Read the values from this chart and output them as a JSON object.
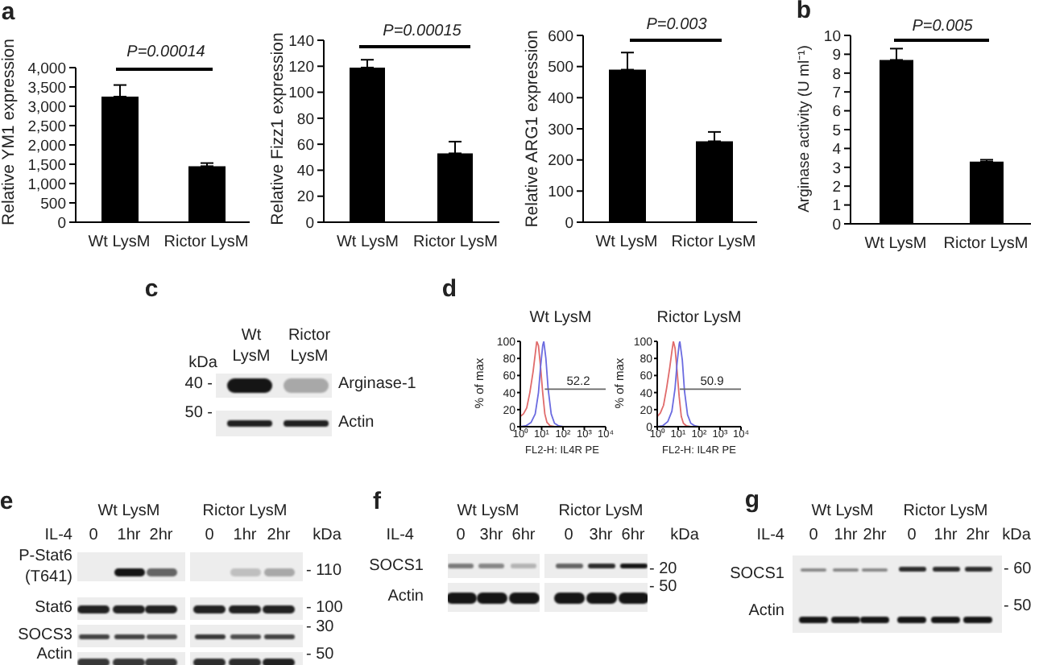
{
  "chart_data": [
    {
      "type": "bar",
      "ylabel": "Relative YM1 expression",
      "categories": [
        "Wt LysM",
        "Rictor LysM"
      ],
      "values": [
        3250,
        1450
      ],
      "errors": [
        [
          3250,
          3550
        ],
        [
          1450,
          1530
        ]
      ],
      "color": "#000000",
      "ylim": [
        0,
        4000
      ],
      "yticks": [
        0,
        500,
        {
          "value": 1000,
          "label": "1,000"
        },
        {
          "value": 1500,
          "label": "1,500"
        },
        {
          "value": 2000,
          "label": "2,000"
        },
        {
          "value": 2500,
          "label": "2,500"
        },
        {
          "value": 3000,
          "label": "3,000"
        },
        {
          "value": 3500,
          "label": "3,500"
        },
        {
          "value": 4000,
          "label": "4,000"
        }
      ],
      "annotations": [
        "a",
        "P=0.00014"
      ]
    },
    {
      "type": "bar",
      "ylabel": "Relative Fizz1 expression",
      "categories": [
        "Wt LysM",
        "Rictor LysM"
      ],
      "values": [
        119,
        53
      ],
      "errors": [
        [
          119,
          125
        ],
        [
          53,
          62
        ]
      ],
      "color": "#000000",
      "ylim": [
        0,
        140
      ],
      "yticks": [
        0,
        20,
        40,
        60,
        80,
        100,
        120,
        140
      ],
      "annotations": [
        "P=0.00015"
      ]
    },
    {
      "type": "bar",
      "ylabel": "Relative ARG1 expression",
      "categories": [
        "Wt LysM",
        "Rictor LysM"
      ],
      "values": [
        490,
        260
      ],
      "errors": [
        [
          490,
          545
        ],
        [
          260,
          290
        ]
      ],
      "color": "#000000",
      "ylim": [
        0,
        600
      ],
      "yticks": [
        0,
        100,
        200,
        300,
        400,
        500,
        600
      ],
      "annotations": [
        "P=0.003"
      ]
    },
    {
      "type": "bar",
      "ylabel": "Arginase activity (U ml⁻¹)",
      "categories": [
        "Wt LysM",
        "Rictor LysM"
      ],
      "values": [
        8.7,
        3.3
      ],
      "errors": [
        [
          8.7,
          9.3
        ],
        [
          3.3,
          3.4
        ]
      ],
      "color": "#000000",
      "ylim": [
        0,
        10
      ],
      "yticks": [
        0,
        1,
        2,
        3,
        4,
        5,
        6,
        7,
        8,
        9,
        10
      ],
      "annotations": [
        "b",
        "P=0.005"
      ]
    },
    {
      "type": "other",
      "annotations": [
        "c",
        "Wt LysM",
        "Rictor LysM",
        "kDa",
        "40 -",
        "50 -",
        "Arginase-1",
        "Actin"
      ]
    },
    {
      "type": "line",
      "title": "Wt LysM",
      "xlabel": "FL2-H: IL4R PE",
      "ylabel": "% of max",
      "log": "x",
      "xlim": [
        1,
        10000
      ],
      "xticks": [
        {
          "value": 1,
          "label": "10⁰"
        },
        {
          "value": 10,
          "label": "10¹"
        },
        {
          "value": 100,
          "label": "10²"
        },
        {
          "value": 1000,
          "label": "10³"
        },
        {
          "value": 10000,
          "label": "10⁴"
        }
      ],
      "ylim": [
        0,
        100
      ],
      "yticks": [
        0,
        20,
        40,
        60,
        80,
        100
      ],
      "series": [
        {
          "color": "#e06b6b",
          "x": [
            1,
            1.4,
            2,
            2.8,
            4,
            5,
            5.9,
            7.1,
            8.9,
            11.2,
            14.1,
            17.8,
            25,
            40
          ],
          "values": [
            12,
            15,
            22,
            40,
            65,
            85,
            100,
            95,
            70,
            40,
            15,
            5,
            1,
            0
          ]
        },
        {
          "color": "#6b6be0",
          "x": [
            1,
            1.8,
            3.2,
            5,
            7.1,
            8.9,
            11.2,
            12.6,
            15.8,
            20,
            28,
            40,
            63,
            100
          ],
          "values": [
            0,
            1,
            5,
            15,
            40,
            70,
            95,
            100,
            80,
            45,
            15,
            4,
            1,
            0
          ]
        },
        {
          "color": "#666666",
          "x": [
            14,
            10000
          ],
          "values": [
            44,
            44
          ]
        }
      ],
      "annotations": [
        "d",
        "52.2"
      ]
    },
    {
      "type": "line",
      "title": "Rictor LysM",
      "xlabel": "FL2-H: IL4R PE",
      "ylabel": "% of max",
      "log": "x",
      "xlim": [
        1,
        10000
      ],
      "xticks": [
        {
          "value": 1,
          "label": "10⁰"
        },
        {
          "value": 10,
          "label": "10¹"
        },
        {
          "value": 100,
          "label": "10²"
        },
        {
          "value": 1000,
          "label": "10³"
        },
        {
          "value": 10000,
          "label": "10⁴"
        }
      ],
      "ylim": [
        0,
        100
      ],
      "yticks": [
        0,
        20,
        40,
        60,
        80,
        100
      ],
      "series": [
        {
          "color": "#e06b6b",
          "x": [
            1,
            1.4,
            2,
            2.8,
            4,
            5,
            5.9,
            7.1,
            8.9,
            11.2,
            14.1,
            17.8,
            25,
            40
          ],
          "values": [
            12,
            16,
            25,
            45,
            70,
            88,
            100,
            92,
            65,
            35,
            12,
            4,
            1,
            0
          ]
        },
        {
          "color": "#6b6be0",
          "x": [
            1,
            1.8,
            3.2,
            5,
            7.1,
            8.9,
            11.2,
            12,
            15.8,
            20,
            28,
            40,
            63,
            100
          ],
          "values": [
            0,
            1,
            6,
            18,
            45,
            75,
            97,
            100,
            78,
            42,
            14,
            4,
            1,
            0
          ]
        },
        {
          "color": "#666666",
          "x": [
            12,
            10000
          ],
          "values": [
            44,
            44
          ]
        }
      ],
      "annotations": [
        "50.9"
      ]
    },
    {
      "type": "other",
      "annotations": [
        "e",
        "Wt LysM",
        "Rictor LysM",
        "IL-4",
        "0",
        "1hr",
        "2hr",
        "0",
        "1hr",
        "2hr",
        "kDa",
        "P-Stat6 (T641)",
        "Stat6",
        "SOCS3",
        "Actin",
        "- 110",
        "- 100",
        "- 30",
        "- 50"
      ]
    },
    {
      "type": "other",
      "annotations": [
        "f",
        "Wt LysM",
        "Rictor LysM",
        "IL-4",
        "0",
        "3hr",
        "6hr",
        "0",
        "3hr",
        "6hr",
        "kDa",
        "SOCS1",
        "Actin",
        "- 20",
        "- 50"
      ]
    },
    {
      "type": "other",
      "annotations": [
        "g",
        "Wt LysM",
        "Rictor LysM",
        "IL-4",
        "0",
        "1hr",
        "2hr",
        "0",
        "1hr",
        "2hr",
        "kDa",
        "SOCS1",
        "Actin",
        "- 60",
        "- 50"
      ]
    }
  ]
}
